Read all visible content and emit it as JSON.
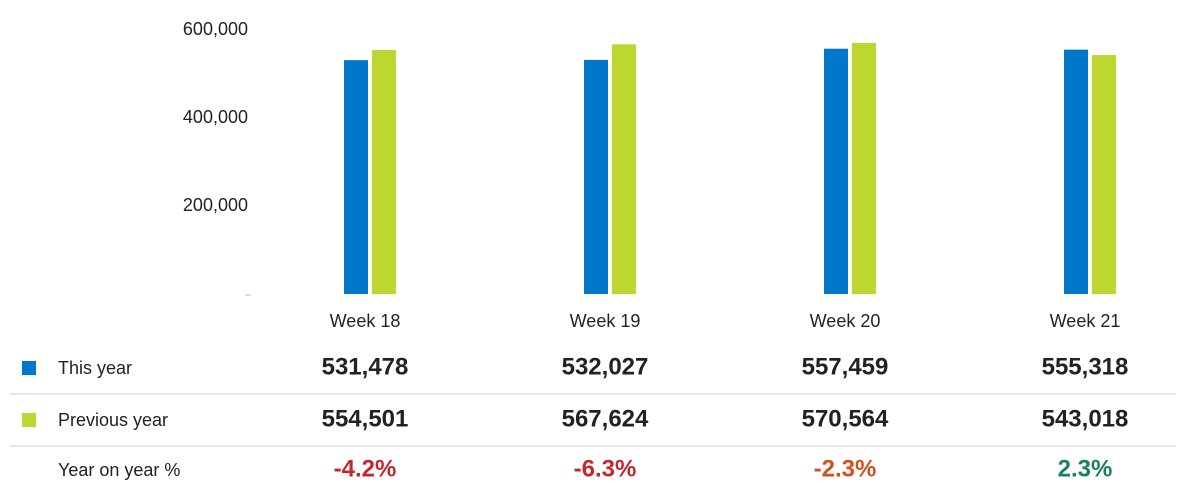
{
  "chart_data": {
    "type": "bar",
    "categories": [
      "Week 18",
      "Week 19",
      "Week 20",
      "Week 21"
    ],
    "series": [
      {
        "name": "This year",
        "color": "#0077c8",
        "values": [
          531478,
          532027,
          557459,
          555318
        ],
        "value_labels": [
          "531,478",
          "532,027",
          "557,459",
          "555,318"
        ]
      },
      {
        "name": "Previous year",
        "color": "#bed630",
        "values": [
          554501,
          567624,
          570564,
          543018
        ],
        "value_labels": [
          "554,501",
          "567,624",
          "570,564",
          "543,018"
        ]
      }
    ],
    "yoy": {
      "name": "Year on year %",
      "values": [
        -4.2,
        -6.3,
        -2.3,
        2.3
      ],
      "value_labels": [
        "-4.2%",
        "-6.3%",
        "-2.3%",
        "2.3%"
      ],
      "colors": [
        "#c0282d",
        "#c0282d",
        "#d2501e",
        "#1a8060"
      ]
    },
    "ylim": [
      0,
      600000
    ],
    "yticks": [
      {
        "value": 200000,
        "label": "200,000"
      },
      {
        "value": 400000,
        "label": "400,000"
      },
      {
        "value": 600000,
        "label": "600,000"
      }
    ]
  }
}
